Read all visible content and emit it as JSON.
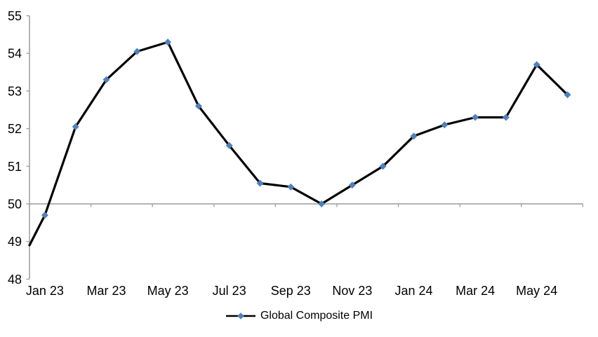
{
  "chart_data": {
    "type": "line",
    "title": "",
    "series_name": "Global Composite PMI",
    "categories": [
      "Jan 23",
      "Feb 23",
      "Mar 23",
      "Apr 23",
      "May 23",
      "Jun 23",
      "Jul 23",
      "Aug 23",
      "Sep 23",
      "Oct 23",
      "Nov 23",
      "Dec 23",
      "Jan 24",
      "Feb 24",
      "Mar 24",
      "Apr 24",
      "May 24",
      "Jun 24"
    ],
    "values": [
      49.7,
      52.05,
      53.3,
      54.05,
      54.3,
      52.6,
      51.55,
      50.55,
      50.45,
      50.0,
      50.5,
      51.0,
      51.8,
      52.1,
      52.3,
      52.3,
      53.7,
      52.9
    ],
    "left_edge_entry_value": 48.9,
    "ylim": [
      48,
      55
    ],
    "y_tick_step": 1,
    "y_tick_labels": [
      "48",
      "49",
      "50",
      "51",
      "52",
      "53",
      "54",
      "55"
    ],
    "x_label_interval": 2,
    "x_tick_labels_shown": [
      "Jan 23",
      "Mar 23",
      "May 23",
      "Jul 23",
      "Sep 23",
      "Nov 23",
      "Jan 24",
      "Mar 24",
      "May 24"
    ],
    "x_axis_cross_value": 50,
    "grid": "off",
    "marker_shape": "diamond",
    "legend": {
      "label": "Global Composite PMI",
      "position": "bottom-center",
      "marker": "diamond-on-line"
    },
    "colors": {
      "line": "#000000",
      "marker": "#4F81BD",
      "axis": "#9C9C9C",
      "text": "#000000"
    }
  }
}
